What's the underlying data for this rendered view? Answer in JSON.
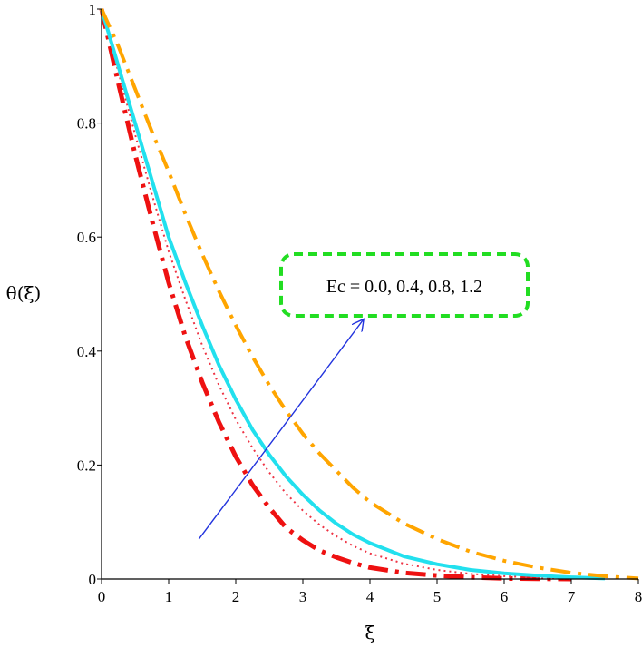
{
  "chart_data": {
    "type": "line",
    "xlabel": "ξ",
    "ylabel": "θ(ξ)",
    "xlim": [
      0,
      8
    ],
    "ylim": [
      0,
      1
    ],
    "xticks": [
      "0",
      "1",
      "2",
      "3",
      "4",
      "5",
      "6",
      "7",
      "8"
    ],
    "yticks": [
      "0",
      "0.2",
      "0.4",
      "0.6",
      "0.8",
      "1"
    ],
    "grid": false,
    "legend": "none",
    "annotation": {
      "text": "Ec = 0.0, 0.4, 0.8, 1.2",
      "box_color": "#22dd22",
      "arrow_color": "#2233dd",
      "arrow_from": [
        1.45,
        0.07
      ],
      "arrow_to": [
        3.9,
        0.455
      ]
    },
    "series": [
      {
        "color": "#ee1111",
        "style": "dashdot-thick",
        "x": [
          0,
          0.25,
          0.5,
          0.75,
          1,
          1.25,
          1.5,
          1.75,
          2,
          2.25,
          2.5,
          2.75,
          3,
          3.25,
          3.5,
          3.75,
          4,
          4.5,
          5,
          5.5,
          6,
          6.5,
          7
        ],
        "y": [
          1,
          0.87,
          0.745,
          0.63,
          0.52,
          0.425,
          0.345,
          0.275,
          0.215,
          0.165,
          0.125,
          0.09,
          0.068,
          0.05,
          0.038,
          0.028,
          0.02,
          0.011,
          0.006,
          0.003,
          0.001,
          0.0005,
          0
        ]
      },
      {
        "color": "#ee3344",
        "style": "dotted",
        "x": [
          0,
          0.25,
          0.5,
          0.75,
          1,
          1.25,
          1.5,
          1.75,
          2,
          2.25,
          2.5,
          2.75,
          3,
          3.25,
          3.5,
          3.75,
          4,
          4.5,
          5,
          5.5,
          6,
          6.5,
          7
        ],
        "y": [
          1,
          0.89,
          0.78,
          0.675,
          0.575,
          0.49,
          0.41,
          0.34,
          0.28,
          0.23,
          0.187,
          0.15,
          0.12,
          0.095,
          0.075,
          0.058,
          0.045,
          0.027,
          0.016,
          0.009,
          0.005,
          0.002,
          0
        ]
      },
      {
        "color": "#22e0ee",
        "style": "solid",
        "x": [
          0,
          0.25,
          0.5,
          0.75,
          1,
          1.25,
          1.5,
          1.75,
          2,
          2.25,
          2.5,
          2.75,
          3,
          3.25,
          3.5,
          3.75,
          4,
          4.5,
          5,
          5.5,
          6,
          6.5,
          7,
          7.5
        ],
        "y": [
          1,
          0.9,
          0.8,
          0.7,
          0.6,
          0.52,
          0.445,
          0.375,
          0.315,
          0.262,
          0.218,
          0.18,
          0.148,
          0.12,
          0.097,
          0.078,
          0.063,
          0.04,
          0.026,
          0.016,
          0.01,
          0.006,
          0.003,
          0.001
        ]
      },
      {
        "color": "#ffa500",
        "style": "dashdot",
        "x": [
          0,
          0.25,
          0.5,
          0.75,
          1,
          1.25,
          1.5,
          1.75,
          2,
          2.25,
          2.5,
          2.75,
          3,
          3.25,
          3.5,
          3.75,
          4,
          4.5,
          5,
          5.5,
          6,
          6.5,
          7,
          7.5,
          8
        ],
        "y": [
          1,
          0.935,
          0.86,
          0.785,
          0.715,
          0.64,
          0.57,
          0.505,
          0.445,
          0.39,
          0.34,
          0.295,
          0.255,
          0.22,
          0.19,
          0.16,
          0.135,
          0.098,
          0.07,
          0.048,
          0.032,
          0.02,
          0.011,
          0.005,
          0.001
        ]
      }
    ]
  }
}
